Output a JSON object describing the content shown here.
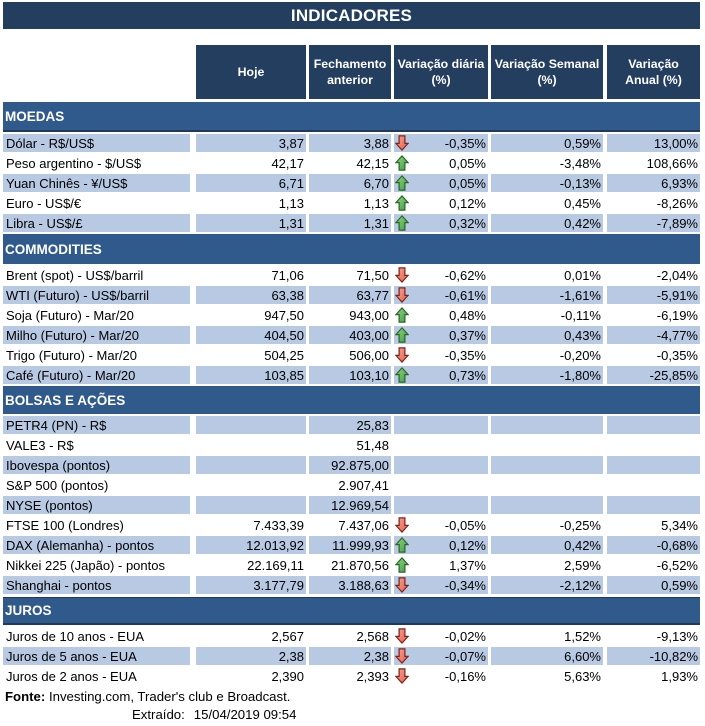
{
  "title": "INDICADORES",
  "columns": [
    {
      "line1": "Hoje",
      "line2": ""
    },
    {
      "line1": "Fechamento",
      "line2": "anterior"
    },
    {
      "line1": "Variação diária",
      "line2": "(%)"
    },
    {
      "line1": "Variação Semanal",
      "line2": "(%)"
    },
    {
      "line1": "Variação",
      "line2": "Anual (%)"
    }
  ],
  "sections": [
    {
      "name": "MOEDAS",
      "first_shaded": true,
      "rows": [
        {
          "label": "Dólar - R$/US$",
          "hoje": "3,87",
          "fechamento": "3,88",
          "arrow": "down",
          "diaria": "-0,35%",
          "semanal": "0,59%",
          "anual": "13,00%"
        },
        {
          "label": "Peso argentino - $/US$",
          "hoje": "42,17",
          "fechamento": "42,15",
          "arrow": "up",
          "diaria": "0,05%",
          "semanal": "-3,48%",
          "anual": "108,66%"
        },
        {
          "label": "Yuan Chinês - ¥/US$",
          "hoje": "6,71",
          "fechamento": "6,70",
          "arrow": "up",
          "diaria": "0,05%",
          "semanal": "-0,13%",
          "anual": "6,93%"
        },
        {
          "label": "Euro - US$/€",
          "hoje": "1,13",
          "fechamento": "1,13",
          "arrow": "up",
          "diaria": "0,12%",
          "semanal": "0,45%",
          "anual": "-8,26%"
        },
        {
          "label": "Libra - US$/£",
          "hoje": "1,31",
          "fechamento": "1,31",
          "arrow": "up",
          "diaria": "0,32%",
          "semanal": "0,42%",
          "anual": "-7,89%"
        }
      ]
    },
    {
      "name": "COMMODITIES",
      "first_shaded": false,
      "rows": [
        {
          "label": "Brent (spot) - US$/barril",
          "hoje": "71,06",
          "fechamento": "71,50",
          "arrow": "down",
          "diaria": "-0,62%",
          "semanal": "0,01%",
          "anual": "-2,04%"
        },
        {
          "label": "WTI (Futuro) - US$/barril",
          "hoje": "63,38",
          "fechamento": "63,77",
          "arrow": "down",
          "diaria": "-0,61%",
          "semanal": "-1,61%",
          "anual": "-5,91%"
        },
        {
          "label": "Soja (Futuro) - Mar/20",
          "hoje": "947,50",
          "fechamento": "943,00",
          "arrow": "up",
          "diaria": "0,48%",
          "semanal": "-0,11%",
          "anual": "-6,19%"
        },
        {
          "label": "Milho (Futuro) - Mar/20",
          "hoje": "404,50",
          "fechamento": "403,00",
          "arrow": "up",
          "diaria": "0,37%",
          "semanal": "0,43%",
          "anual": "-4,77%"
        },
        {
          "label": "Trigo (Futuro) - Mar/20",
          "hoje": "504,25",
          "fechamento": "506,00",
          "arrow": "down",
          "diaria": "-0,35%",
          "semanal": "-0,20%",
          "anual": "-0,35%"
        },
        {
          "label": "Café (Futuro) - Mar/20",
          "hoje": "103,85",
          "fechamento": "103,10",
          "arrow": "up",
          "diaria": "0,73%",
          "semanal": "-1,80%",
          "anual": "-25,85%"
        }
      ]
    },
    {
      "name": "BOLSAS E AÇÕES",
      "first_shaded": true,
      "rows": [
        {
          "label": "PETR4 (PN) - R$",
          "hoje": "",
          "fechamento": "25,83",
          "arrow": "none",
          "diaria": "",
          "semanal": "",
          "anual": ""
        },
        {
          "label": "VALE3 - R$",
          "hoje": "",
          "fechamento": "51,48",
          "arrow": "none",
          "diaria": "",
          "semanal": "",
          "anual": ""
        },
        {
          "label": "Ibovespa (pontos)",
          "hoje": "",
          "fechamento": "92.875,00",
          "arrow": "none",
          "diaria": "",
          "semanal": "",
          "anual": ""
        },
        {
          "label": "S&P 500 (pontos)",
          "hoje": "",
          "fechamento": "2.907,41",
          "arrow": "none",
          "diaria": "",
          "semanal": "",
          "anual": ""
        },
        {
          "label": "NYSE (pontos)",
          "hoje": "",
          "fechamento": "12.969,54",
          "arrow": "none",
          "diaria": "",
          "semanal": "",
          "anual": ""
        },
        {
          "label": "FTSE 100 (Londres)",
          "hoje": "7.433,39",
          "fechamento": "7.437,06",
          "arrow": "down",
          "diaria": "-0,05%",
          "semanal": "-0,25%",
          "anual": "5,34%"
        },
        {
          "label": "DAX (Alemanha) - pontos",
          "hoje": "12.013,92",
          "fechamento": "11.999,93",
          "arrow": "up",
          "diaria": "0,12%",
          "semanal": "0,42%",
          "anual": "-0,68%"
        },
        {
          "label": "Nikkei 225 (Japão) - pontos",
          "hoje": "22.169,11",
          "fechamento": "21.870,56",
          "arrow": "up",
          "diaria": "1,37%",
          "semanal": "2,59%",
          "anual": "-6,52%"
        },
        {
          "label": "Shanghai - pontos",
          "hoje": "3.177,79",
          "fechamento": "3.188,63",
          "arrow": "down",
          "diaria": "-0,34%",
          "semanal": "-2,12%",
          "anual": "0,59%"
        }
      ]
    },
    {
      "name": "JUROS",
      "first_shaded": false,
      "rows": [
        {
          "label": "Juros de 10 anos - EUA",
          "hoje": "2,567",
          "fechamento": "2,568",
          "arrow": "down",
          "diaria": "-0,02%",
          "semanal": "1,52%",
          "anual": "-9,13%"
        },
        {
          "label": "Juros de 5 anos - EUA",
          "hoje": "2,38",
          "fechamento": "2,38",
          "arrow": "down",
          "diaria": "-0,07%",
          "semanal": "6,60%",
          "anual": "-10,82%"
        },
        {
          "label": "Juros de 2 anos - EUA",
          "hoje": "2,390",
          "fechamento": "2,393",
          "arrow": "down",
          "diaria": "-0,16%",
          "semanal": "5,63%",
          "anual": "1,93%"
        }
      ]
    }
  ],
  "footer": {
    "fonte_label": "Fonte:",
    "fonte_rest": " Investing.com, Trader's club e Broadcast.",
    "extraido_label": "Extraído:",
    "extraido_value": "15/04/2019 09:54"
  },
  "colors": {
    "navy": "#243e60",
    "section_blue": "#315a8c",
    "row_blue": "#b8c9e3",
    "up_green_fill": "#6ebc5d",
    "up_green_stroke": "#2d6428",
    "down_red_fill": "#ee8472",
    "down_red_stroke": "#7a241a"
  }
}
